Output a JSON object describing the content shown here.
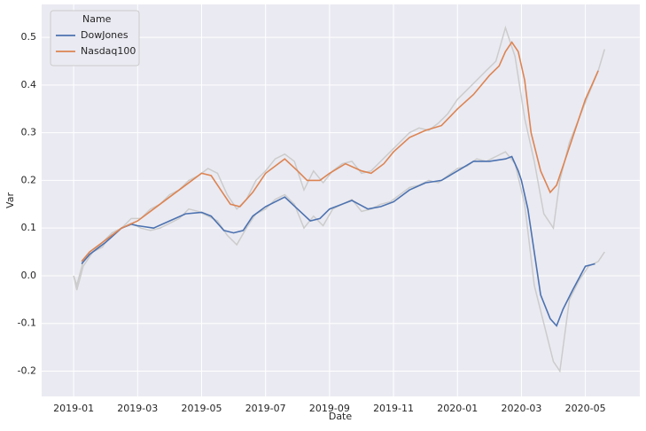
{
  "chart_data": {
    "type": "line",
    "xlabel": "Date",
    "ylabel": "Var",
    "legend_title": "Name",
    "legend": "upper left",
    "grid": true,
    "xlim": [
      -1.0,
      17.7
    ],
    "ylim": [
      -0.253,
      0.569
    ],
    "xticks": [
      {
        "value": 0,
        "label": "2019-01"
      },
      {
        "value": 2,
        "label": "2019-03"
      },
      {
        "value": 4,
        "label": "2019-05"
      },
      {
        "value": 6,
        "label": "2019-07"
      },
      {
        "value": 8,
        "label": "2019-09"
      },
      {
        "value": 10,
        "label": "2019-11"
      },
      {
        "value": 12,
        "label": "2020-01"
      },
      {
        "value": 14,
        "label": "2020-03"
      },
      {
        "value": 16,
        "label": "2020-05"
      }
    ],
    "yticks": [
      -0.2,
      -0.1,
      {
        "value": 0,
        "label": "0.0"
      },
      0.1,
      0.2,
      0.3,
      0.4,
      0.5
    ],
    "series": [
      {
        "color": "#cccccc",
        "x": [
          0,
          0.1,
          0.3,
          0.6,
          0.9,
          1.2,
          1.5,
          1.8,
          2.1,
          2.4,
          2.7,
          3.0,
          3.3,
          3.6,
          3.9,
          4.2,
          4.5,
          4.8,
          5.1,
          5.4,
          5.7,
          6.0,
          6.3,
          6.6,
          6.9,
          7.2,
          7.5,
          7.8,
          8.1,
          8.4,
          8.7,
          9.0,
          9.3,
          9.6,
          9.9,
          10.2,
          10.5,
          10.8,
          11.1,
          11.4,
          11.7,
          12.0,
          12.3,
          12.6,
          12.9,
          13.2,
          13.5,
          13.8,
          14.1,
          14.4,
          14.7,
          15.0,
          15.2,
          15.5,
          15.8,
          16.1,
          16.4,
          16.6
        ],
        "values": [
          0,
          -0.03,
          0.02,
          0.05,
          0.06,
          0.09,
          0.1,
          0.11,
          0.1,
          0.095,
          0.1,
          0.11,
          0.12,
          0.14,
          0.135,
          0.125,
          0.115,
          0.085,
          0.065,
          0.1,
          0.13,
          0.14,
          0.16,
          0.17,
          0.15,
          0.1,
          0.125,
          0.105,
          0.14,
          0.15,
          0.16,
          0.135,
          0.14,
          0.15,
          0.155,
          0.17,
          0.185,
          0.19,
          0.2,
          0.195,
          0.21,
          0.225,
          0.23,
          0.245,
          0.24,
          0.25,
          0.26,
          0.235,
          0.15,
          -0.02,
          -0.1,
          -0.18,
          -0.2,
          -0.05,
          -0.01,
          0.02,
          0.03,
          0.05
        ]
      },
      {
        "color": "#cccccc",
        "x": [
          0,
          0.1,
          0.3,
          0.6,
          0.9,
          1.2,
          1.5,
          1.8,
          2.1,
          2.4,
          2.7,
          3.0,
          3.3,
          3.6,
          3.9,
          4.2,
          4.5,
          4.8,
          5.1,
          5.4,
          5.7,
          6.0,
          6.3,
          6.6,
          6.9,
          7.2,
          7.5,
          7.8,
          8.1,
          8.4,
          8.7,
          9.0,
          9.3,
          9.6,
          9.9,
          10.2,
          10.5,
          10.8,
          11.1,
          11.4,
          11.7,
          12.0,
          12.3,
          12.6,
          12.9,
          13.2,
          13.5,
          13.8,
          14.1,
          14.4,
          14.7,
          15.0,
          15.2,
          15.5,
          15.8,
          16.1,
          16.4,
          16.6
        ],
        "values": [
          0,
          -0.02,
          0.03,
          0.05,
          0.07,
          0.09,
          0.1,
          0.12,
          0.12,
          0.14,
          0.15,
          0.17,
          0.18,
          0.2,
          0.21,
          0.225,
          0.215,
          0.17,
          0.14,
          0.16,
          0.2,
          0.22,
          0.245,
          0.255,
          0.24,
          0.18,
          0.22,
          0.195,
          0.22,
          0.235,
          0.24,
          0.215,
          0.22,
          0.24,
          0.26,
          0.28,
          0.3,
          0.31,
          0.305,
          0.32,
          0.34,
          0.37,
          0.39,
          0.41,
          0.43,
          0.45,
          0.52,
          0.46,
          0.33,
          0.24,
          0.13,
          0.1,
          0.2,
          0.28,
          0.33,
          0.38,
          0.43,
          0.475
        ]
      },
      {
        "name": "DowJones",
        "color": "#4c72b0",
        "x": [
          0.25,
          0.5,
          1,
          1.5,
          1.8,
          2,
          2.5,
          3,
          3.5,
          4,
          4.3,
          4.7,
          5,
          5.3,
          5.6,
          6,
          6.6,
          7,
          7.4,
          7.7,
          8,
          8.7,
          9.2,
          9.6,
          10,
          10.5,
          11,
          11.5,
          12,
          12.5,
          13,
          13.5,
          13.7,
          13.9,
          14,
          14.2,
          14.4,
          14.6,
          14.9,
          15.1,
          15.3,
          15.6,
          16,
          16.3
        ],
        "values": [
          0.025,
          0.045,
          0.07,
          0.1,
          0.108,
          0.105,
          0.1,
          0.115,
          0.13,
          0.133,
          0.125,
          0.095,
          0.09,
          0.095,
          0.125,
          0.145,
          0.165,
          0.14,
          0.115,
          0.12,
          0.14,
          0.158,
          0.14,
          0.145,
          0.155,
          0.18,
          0.195,
          0.2,
          0.22,
          0.24,
          0.24,
          0.245,
          0.25,
          0.22,
          0.2,
          0.14,
          0.05,
          -0.04,
          -0.09,
          -0.105,
          -0.07,
          -0.03,
          0.02,
          0.025
        ]
      },
      {
        "name": "Nasdaq100",
        "color": "#dd8452",
        "x": [
          0.25,
          0.5,
          1,
          1.5,
          2,
          2.5,
          3,
          3.5,
          4,
          4.3,
          4.6,
          4.9,
          5.2,
          5.6,
          6,
          6.6,
          7,
          7.3,
          7.7,
          8,
          8.5,
          9,
          9.3,
          9.7,
          10,
          10.5,
          11,
          11.5,
          12,
          12.5,
          13,
          13.3,
          13.5,
          13.7,
          13.9,
          14.1,
          14.3,
          14.6,
          14.9,
          15.1,
          15.4,
          15.8,
          16,
          16.2,
          16.4
        ],
        "values": [
          0.03,
          0.05,
          0.075,
          0.1,
          0.115,
          0.14,
          0.165,
          0.19,
          0.215,
          0.21,
          0.18,
          0.15,
          0.145,
          0.175,
          0.215,
          0.245,
          0.22,
          0.2,
          0.2,
          0.215,
          0.235,
          0.22,
          0.215,
          0.235,
          0.26,
          0.29,
          0.305,
          0.315,
          0.35,
          0.38,
          0.42,
          0.44,
          0.47,
          0.49,
          0.47,
          0.41,
          0.3,
          0.22,
          0.175,
          0.19,
          0.25,
          0.33,
          0.37,
          0.4,
          0.43
        ]
      }
    ]
  }
}
